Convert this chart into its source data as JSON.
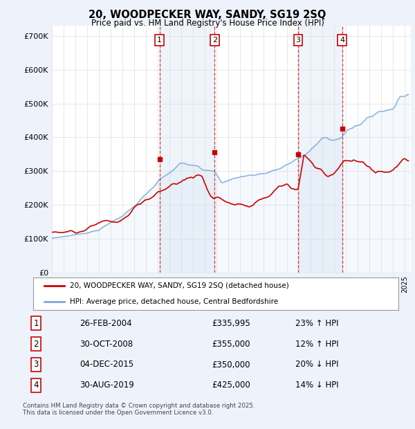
{
  "title": "20, WOODPECKER WAY, SANDY, SG19 2SQ",
  "subtitle": "Price paid vs. HM Land Registry's House Price Index (HPI)",
  "ylim": [
    0,
    730000
  ],
  "yticks": [
    0,
    100000,
    200000,
    300000,
    400000,
    500000,
    600000,
    700000
  ],
  "ytick_labels": [
    "£0",
    "£100K",
    "£200K",
    "£300K",
    "£400K",
    "£500K",
    "£600K",
    "£700K"
  ],
  "xlim_start": 1995.0,
  "xlim_end": 2025.5,
  "background_color": "#eef2fb",
  "plot_bg_color": "#ffffff",
  "legend_label_red": "20, WOODPECKER WAY, SANDY, SG19 2SQ (detached house)",
  "legend_label_blue": "HPI: Average price, detached house, Central Bedfordshire",
  "footer": "Contains HM Land Registry data © Crown copyright and database right 2025.\nThis data is licensed under the Open Government Licence v3.0.",
  "transactions": [
    {
      "num": 1,
      "date": "26-FEB-2004",
      "price": "£335,995",
      "hpi": "23% ↑ HPI",
      "year": 2004.15
    },
    {
      "num": 2,
      "date": "30-OCT-2008",
      "price": "£355,000",
      "hpi": "12% ↑ HPI",
      "year": 2008.83
    },
    {
      "num": 3,
      "date": "04-DEC-2015",
      "price": "£350,000",
      "hpi": "20% ↓ HPI",
      "year": 2015.92
    },
    {
      "num": 4,
      "date": "30-AUG-2019",
      "price": "£425,000",
      "hpi": "14% ↓ HPI",
      "year": 2019.67
    }
  ],
  "transaction_prices": [
    335995,
    355000,
    350000,
    425000
  ],
  "red_color": "#cc0000",
  "blue_color": "#7aaadd",
  "blue_fill_color": "#c8dcf0",
  "vline_color": "#cc0000",
  "vline_style2_color": "#aabbdd",
  "grid_color": "#dddddd"
}
